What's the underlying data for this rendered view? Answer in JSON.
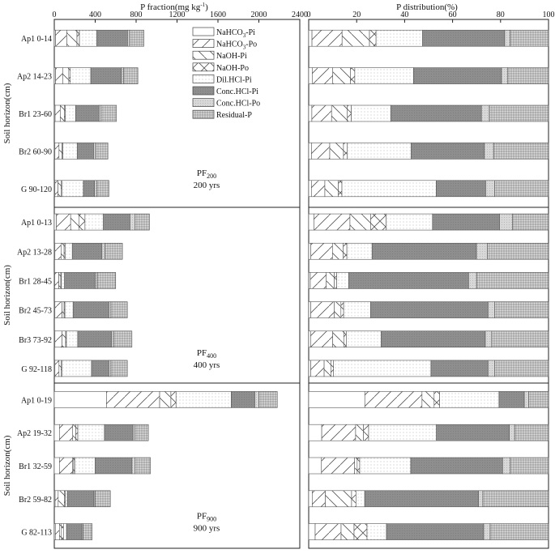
{
  "chart_data": {
    "type": "bar",
    "stacked": true,
    "orientation": "horizontal",
    "left_panel": {
      "xlabel": "P fraction(mg kg",
      "xlabel_sup": "-1",
      "xlabel_tail": ")",
      "xlim": [
        0,
        2400
      ],
      "ticks": [
        "0",
        "400",
        "800",
        "1200",
        "1600",
        "2000",
        "2400"
      ]
    },
    "right_panel": {
      "xlabel": "P distribution(%)",
      "xlim": [
        0,
        100
      ],
      "ticks": [
        "0",
        "20",
        "40",
        "60",
        "80",
        "100"
      ]
    },
    "ylabel": "Soil horizon(cm)",
    "legend": {
      "placement": "top-center of left panel",
      "entries": [
        {
          "base": "NaHCO",
          "sub": "3",
          "tail": "-Pi",
          "pattern": "none"
        },
        {
          "base": "NaHCO",
          "sub": "3",
          "tail": "-Po",
          "pattern": "diag-fwd"
        },
        {
          "base": "NaOH-Pi",
          "sub": "",
          "tail": "",
          "pattern": "diag-back"
        },
        {
          "base": "NaOH-Po",
          "sub": "",
          "tail": "",
          "pattern": "cross"
        },
        {
          "base": "Dil.HCl-Pi",
          "sub": "",
          "tail": "",
          "pattern": "dots-fine"
        },
        {
          "base": "Conc.HCl-Pi",
          "sub": "",
          "tail": "",
          "pattern": "gray"
        },
        {
          "base": "Conc.HCl-Po",
          "sub": "",
          "tail": "",
          "pattern": "light-dots"
        },
        {
          "base": "Residual-P",
          "sub": "",
          "tail": "",
          "pattern": "dense-dots"
        }
      ]
    },
    "groups": [
      {
        "name_base": "PF",
        "name_sub": "200",
        "age": "200 yrs",
        "rows": [
          {
            "label": "Ap1  0-14",
            "values": [
              12,
              110,
              100,
              24,
              170,
              300,
              20,
              140
            ]
          },
          {
            "label": "Ap2  14-23",
            "values": [
              12,
              70,
              60,
              15,
              200,
              300,
              20,
              140
            ]
          },
          {
            "label": "Br1  23-60",
            "values": [
              8,
              50,
              40,
              10,
              100,
              230,
              20,
              150
            ]
          },
          {
            "label": "Br2  60-90",
            "values": [
              6,
              40,
              30,
              8,
              140,
              160,
              20,
              120
            ]
          },
          {
            "label": "G  90-120",
            "values": [
              6,
              30,
              30,
              8,
              210,
              110,
              20,
              120
            ]
          }
        ]
      },
      {
        "name_base": "PF",
        "name_sub": "400",
        "age": "400 yrs",
        "rows": [
          {
            "label": "Ap1  0-13",
            "values": [
              20,
              140,
              80,
              60,
              180,
              260,
              50,
              140
            ]
          },
          {
            "label": "Ap2  13-28",
            "values": [
              6,
              60,
              30,
              10,
              70,
              290,
              30,
              170
            ]
          },
          {
            "label": "Br1  28-45",
            "values": [
              4,
              40,
              20,
              6,
              30,
              300,
              20,
              180
            ]
          },
          {
            "label": "Br2  45-73",
            "values": [
              6,
              70,
              20,
              8,
              80,
              350,
              20,
              160
            ]
          },
          {
            "label": "Br3  73-92",
            "values": [
              6,
              70,
              35,
              8,
              110,
              330,
              20,
              180
            ]
          },
          {
            "label": "G  92-118",
            "values": [
              6,
              40,
              20,
              8,
              290,
              170,
              20,
              160
            ]
          }
        ]
      },
      {
        "name_base": "PF",
        "name_sub": "900",
        "age": "900 yrs",
        "rows": [
          {
            "label": "Ap1  0-19",
            "values": [
              510,
              520,
              110,
              50,
              540,
              230,
              40,
              180
            ]
          },
          {
            "label": "Ap2  19-32",
            "values": [
              50,
              130,
              30,
              20,
              260,
              280,
              20,
              130
            ]
          },
          {
            "label": "Br1  32-59",
            "values": [
              50,
              130,
              10,
              10,
              200,
              360,
              30,
              150
            ]
          },
          {
            "label": "Br2  59-82",
            "values": [
              8,
              30,
              60,
              10,
              20,
              260,
              10,
              150
            ]
          },
          {
            "label": "G  82-113",
            "values": [
              10,
              40,
              20,
              20,
              30,
              150,
              10,
              90
            ]
          }
        ]
      }
    ]
  }
}
